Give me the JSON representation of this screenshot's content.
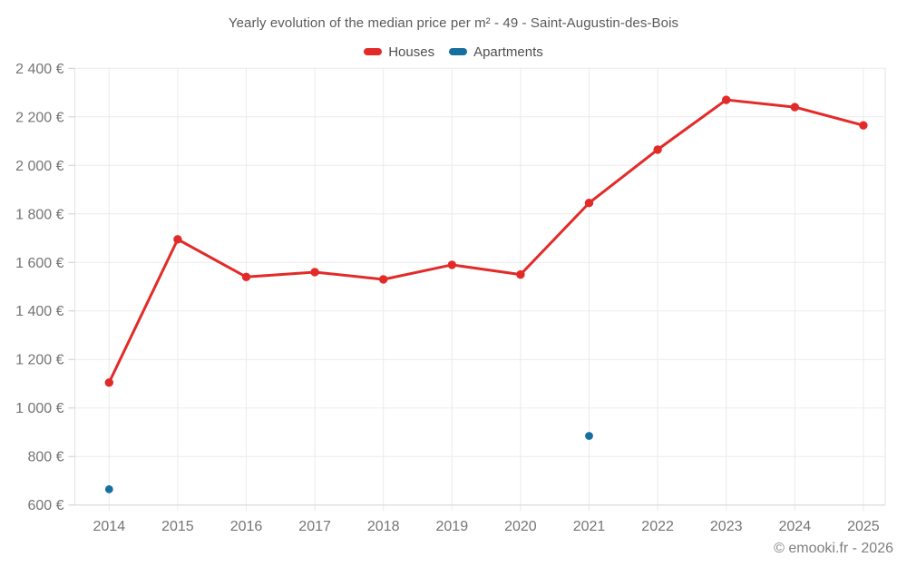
{
  "chart_data": {
    "type": "line",
    "title": "Yearly evolution of the median price per m² - 49 - Saint-Augustin-des-Bois",
    "categories": [
      "2014",
      "2015",
      "2016",
      "2017",
      "2018",
      "2019",
      "2020",
      "2021",
      "2022",
      "2023",
      "2024",
      "2025"
    ],
    "series": [
      {
        "name": "Houses",
        "color": "#e22b28",
        "marker": "circle",
        "line": true,
        "values": [
          1105,
          1695,
          1540,
          1560,
          1530,
          1590,
          1550,
          1845,
          2065,
          2270,
          2240,
          2165
        ]
      },
      {
        "name": "Apartments",
        "color": "#156f9f",
        "marker": "circle",
        "line": false,
        "points": [
          {
            "category": "2014",
            "value": 665
          },
          {
            "category": "2021",
            "value": 885
          }
        ]
      }
    ],
    "ylim": [
      600,
      2400
    ],
    "ytick_step": 200,
    "yticks": [
      600,
      800,
      1000,
      1200,
      1400,
      1600,
      1800,
      2000,
      2200,
      2400
    ],
    "y_unit": "€",
    "grid": true,
    "legend_position": "top"
  },
  "footer": {
    "credit": "© emooki.fr - 2026"
  }
}
